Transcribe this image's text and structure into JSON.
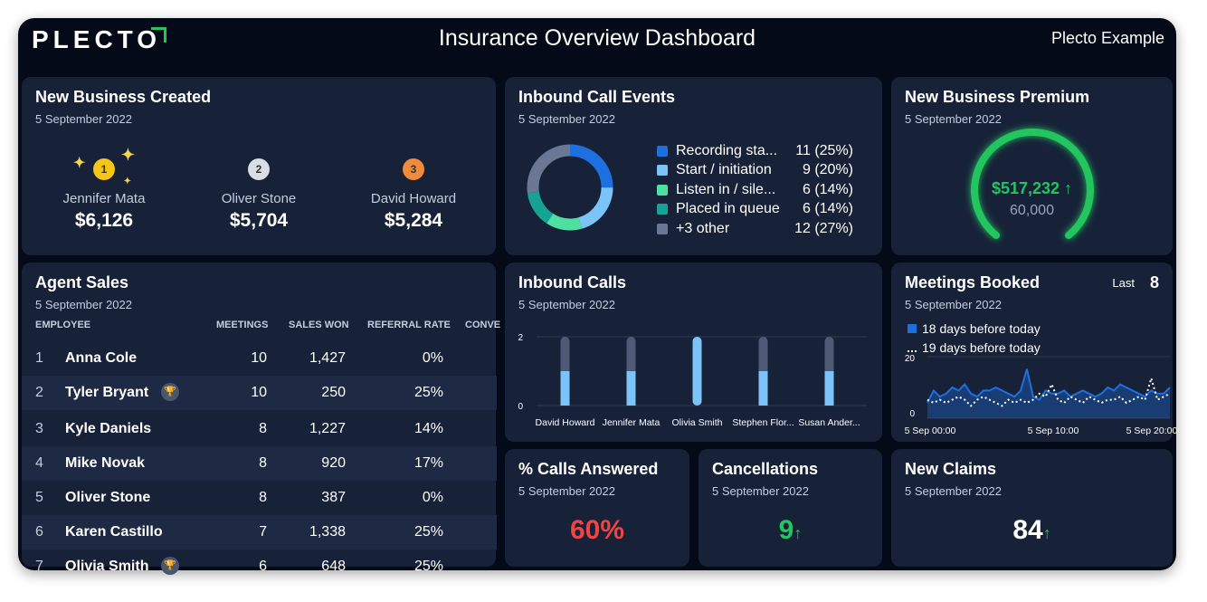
{
  "header": {
    "logo": "PLECTO",
    "title": "Insurance Overview Dashboard",
    "org": "Plecto Example"
  },
  "colors": {
    "background": "#050a18",
    "card": "#172239",
    "green": "#22c55e",
    "red": "#ef4444",
    "blue": "#1e6fe0"
  },
  "new_business": {
    "title": "New Business Created",
    "date": "5 September 2022",
    "podium": [
      {
        "rank": "1",
        "name": "Jennifer Mata",
        "value": "$6,126"
      },
      {
        "rank": "2",
        "name": "Oliver Stone",
        "value": "$5,704"
      },
      {
        "rank": "3",
        "name": "David Howard",
        "value": "$5,284"
      }
    ]
  },
  "inbound_events": {
    "title": "Inbound Call Events",
    "date": "5 September 2022",
    "legend": [
      {
        "label": "Recording sta...",
        "value": "11 (25%)",
        "color": "#1e6fe0"
      },
      {
        "label": "Start / initiation",
        "value": "9 (20%)",
        "color": "#7cc4f8"
      },
      {
        "label": "Listen in / sile...",
        "value": "6 (14%)",
        "color": "#4ee0a0"
      },
      {
        "label": "Placed in queue",
        "value": "6 (14%)",
        "color": "#16a394"
      },
      {
        "label": "+3 other",
        "value": "12 (27%)",
        "color": "#6b7894"
      }
    ],
    "chart_data": {
      "type": "pie",
      "labels": [
        "Recording sta...",
        "Start / initiation",
        "Listen in / sile...",
        "Placed in queue",
        "+3 other"
      ],
      "values": [
        11,
        9,
        6,
        6,
        12
      ]
    }
  },
  "premium": {
    "title": "New Business Premium",
    "date": "5 September 2022",
    "value": "$517,232",
    "target": "60,000",
    "arrow": "↑"
  },
  "agent_sales": {
    "title": "Agent Sales",
    "date": "5 September 2022",
    "columns": [
      "EMPLOYEE",
      "MEETINGS",
      "SALES WON",
      "REFERRAL RATE",
      "CONVE"
    ],
    "rows": [
      {
        "rank": "1",
        "name": "Anna Cole",
        "meetings": "10",
        "sales": "1,427",
        "rate": "0%"
      },
      {
        "rank": "2",
        "name": "Tyler Bryant",
        "meetings": "10",
        "sales": "250",
        "rate": "25%"
      },
      {
        "rank": "3",
        "name": "Kyle Daniels",
        "meetings": "8",
        "sales": "1,227",
        "rate": "14%"
      },
      {
        "rank": "4",
        "name": "Mike Novak",
        "meetings": "8",
        "sales": "920",
        "rate": "17%"
      },
      {
        "rank": "5",
        "name": "Oliver Stone",
        "meetings": "8",
        "sales": "387",
        "rate": "0%"
      },
      {
        "rank": "6",
        "name": "Karen Castillo",
        "meetings": "7",
        "sales": "1,338",
        "rate": "25%"
      },
      {
        "rank": "7",
        "name": "Olivia Smith",
        "meetings": "6",
        "sales": "648",
        "rate": "25%"
      }
    ]
  },
  "inbound_calls": {
    "title": "Inbound Calls",
    "date": "5 September 2022",
    "chart_data": {
      "type": "bar",
      "categories": [
        "David Howard",
        "Jennifer Mata",
        "Olivia Smith",
        "Stephen Flor...",
        "Susan Ander..."
      ],
      "values": [
        1,
        1,
        2,
        1,
        1
      ],
      "ylim": [
        0,
        2
      ],
      "yticks": [
        "2",
        "0"
      ]
    }
  },
  "meetings": {
    "title": "Meetings Booked",
    "date": "5 September 2022",
    "last_label": "Last",
    "last_value": "8",
    "chart_data": {
      "type": "area",
      "x_labels": [
        "5 Sep 00:00",
        "5 Sep 10:00",
        "5 Sep 20:00"
      ],
      "ytick": "20",
      "ylow": "0",
      "ylim": [
        0,
        20
      ],
      "series": [
        {
          "name": "18 days before today",
          "values": [
            5,
            9,
            7,
            8,
            10,
            9,
            11,
            8,
            7,
            9,
            9,
            10,
            9,
            8,
            7,
            9,
            16,
            7,
            6,
            9,
            8,
            8,
            9,
            7,
            8,
            9,
            8,
            7,
            8,
            10,
            9,
            11,
            10,
            9,
            8,
            7,
            9,
            8,
            8,
            10
          ]
        },
        {
          "name": "19 days before today",
          "values": [
            6,
            5,
            6,
            5,
            6,
            7,
            6,
            4,
            6,
            7,
            6,
            5,
            4,
            6,
            5,
            6,
            5,
            6,
            8,
            7,
            11,
            6,
            5,
            7,
            6,
            5,
            7,
            6,
            5,
            6,
            6,
            7,
            5,
            6,
            7,
            6,
            13,
            6,
            7,
            8
          ]
        }
      ]
    }
  },
  "calls_answered": {
    "title": "% Calls Answered",
    "date": "5 September 2022",
    "value": "60%"
  },
  "cancellations": {
    "title": "Cancellations",
    "date": "5 September 2022",
    "value": "9",
    "arrow": "↑"
  },
  "new_claims": {
    "title": "New Claims",
    "date": "5 September 2022",
    "value": "84",
    "arrow": "↑"
  }
}
